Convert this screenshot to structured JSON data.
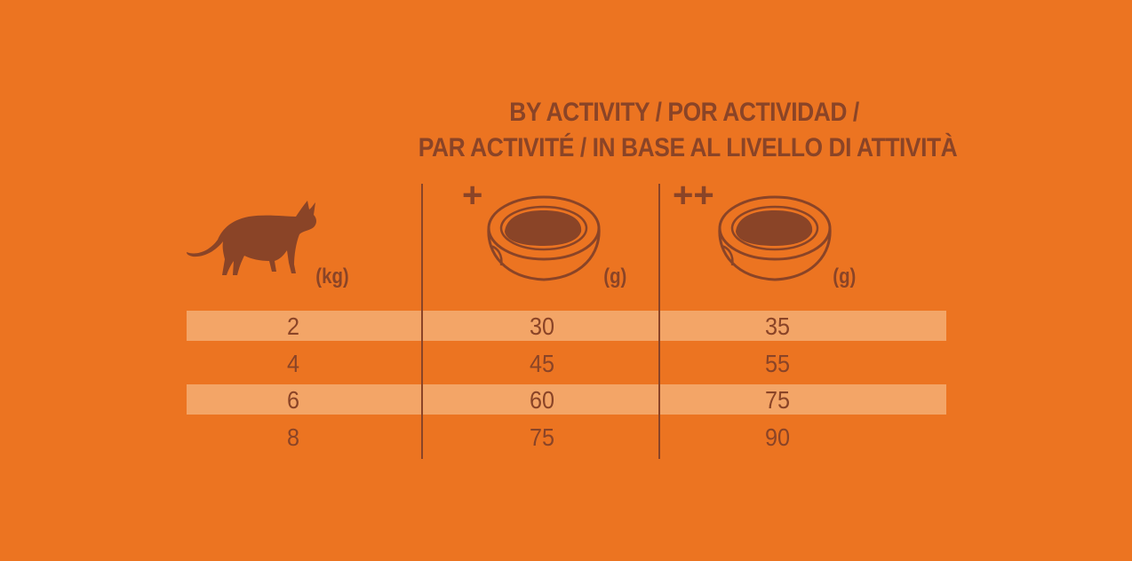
{
  "title": {
    "line1": "BY ACTIVITY / POR ACTIVIDAD /",
    "line2": "PAR ACTIVITÉ / IN BASE AL LIVELLO DI ATTIVITÀ"
  },
  "columns": {
    "weight_unit": "(kg)",
    "low_activity_symbol": "+",
    "low_activity_unit": "(g)",
    "high_activity_symbol": "++",
    "high_activity_unit": "(g)"
  },
  "rows": [
    {
      "weight": "2",
      "low": "30",
      "high": "35"
    },
    {
      "weight": "4",
      "low": "45",
      "high": "55"
    },
    {
      "weight": "6",
      "low": "60",
      "high": "75"
    },
    {
      "weight": "8",
      "low": "75",
      "high": "90"
    }
  ],
  "icons": [
    "cat-icon",
    "food-bowl-icon"
  ],
  "colors": {
    "background": "#EC7421",
    "ink": "#8A4427",
    "band": "#F3A567"
  }
}
